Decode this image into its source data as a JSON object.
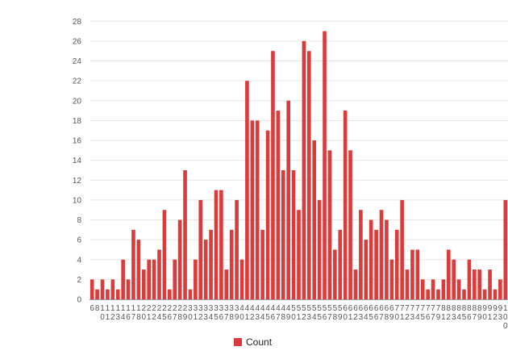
{
  "chart_data": {
    "type": "bar",
    "legend_position": "bottom",
    "grid": true,
    "bar_color": "#db3b3b",
    "grid_color": "#e6e6e6",
    "ylim": [
      0,
      29
    ],
    "yticks": [
      0,
      2,
      4,
      6,
      8,
      10,
      12,
      14,
      16,
      18,
      20,
      22,
      24,
      26,
      28
    ],
    "categories": [
      "6",
      "8",
      "10",
      "11",
      "12",
      "13",
      "14",
      "16",
      "17",
      "18",
      "20",
      "21",
      "22",
      "24",
      "25",
      "26",
      "27",
      "28",
      "29",
      "30",
      "31",
      "32",
      "33",
      "34",
      "35",
      "36",
      "37",
      "38",
      "39",
      "40",
      "41",
      "42",
      "43",
      "44",
      "45",
      "46",
      "47",
      "48",
      "49",
      "50",
      "51",
      "52",
      "53",
      "54",
      "55",
      "56",
      "57",
      "58",
      "59",
      "60",
      "61",
      "62",
      "63",
      "64",
      "65",
      "66",
      "67",
      "68",
      "69",
      "70",
      "71",
      "72",
      "73",
      "74",
      "75",
      "76",
      "77",
      "79",
      "81",
      "82",
      "83",
      "84",
      "85",
      "86",
      "87",
      "89",
      "90",
      "91",
      "92",
      "93",
      "100"
    ],
    "series": [
      {
        "name": "Count",
        "values": [
          2,
          1,
          2,
          1,
          2,
          1,
          4,
          2,
          7,
          6,
          3,
          4,
          4,
          5,
          9,
          1,
          4,
          8,
          13,
          1,
          4,
          10,
          6,
          7,
          11,
          11,
          3,
          7,
          10,
          4,
          22,
          18,
          18,
          7,
          17,
          25,
          19,
          13,
          20,
          13,
          9,
          26,
          25,
          16,
          10,
          27,
          15,
          5,
          7,
          19,
          15,
          3,
          9,
          6,
          8,
          7,
          9,
          8,
          4,
          7,
          10,
          3,
          5,
          5,
          2,
          1,
          2,
          1,
          2,
          5,
          4,
          2,
          1,
          4,
          3,
          3,
          1,
          3,
          1,
          2,
          10
        ]
      }
    ]
  }
}
